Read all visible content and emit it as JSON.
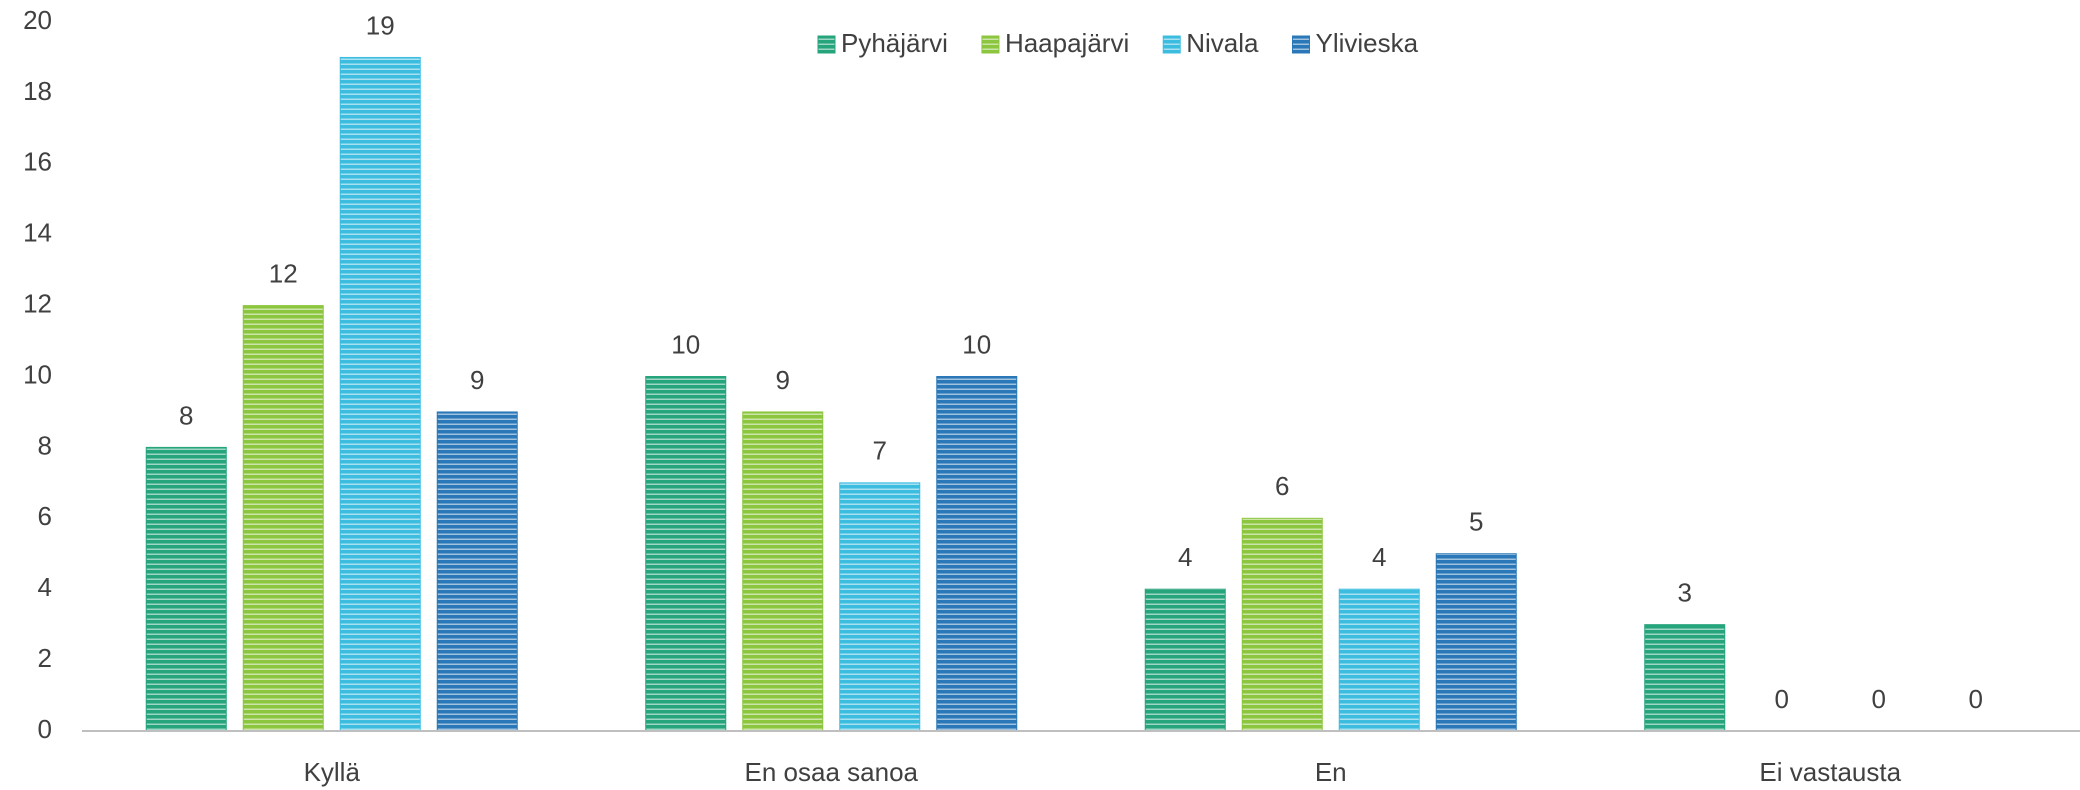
{
  "chart_data": {
    "type": "bar",
    "categories": [
      "Kyllä",
      "En osaa sanoa",
      "En",
      "Ei vastausta"
    ],
    "series": [
      {
        "name": "Pyhäjärvi",
        "color": "#26a47c",
        "values": [
          8,
          10,
          4,
          3
        ]
      },
      {
        "name": "Haapajärvi",
        "color": "#8cc63e",
        "values": [
          12,
          9,
          6,
          0
        ]
      },
      {
        "name": "Nivala",
        "color": "#3cbde0",
        "values": [
          19,
          7,
          4,
          0
        ]
      },
      {
        "name": "Ylivieska",
        "color": "#2a78b8",
        "values": [
          9,
          10,
          5,
          0
        ]
      }
    ],
    "ylim": [
      0,
      20
    ],
    "yticks": [
      0,
      2,
      4,
      6,
      8,
      10,
      12,
      14,
      16,
      18,
      20
    ],
    "grid": false,
    "legend": "top"
  }
}
